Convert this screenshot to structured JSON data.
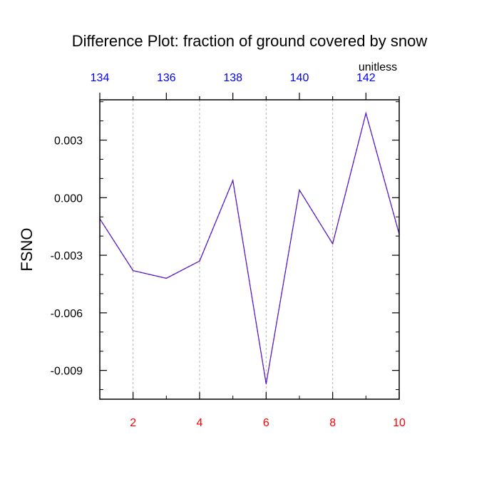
{
  "chart_data": {
    "type": "line",
    "title": "Difference Plot: fraction of ground covered by snow",
    "ylabel": "FSNO",
    "units_label": "unitless",
    "x": [
      1,
      2,
      3,
      4,
      5,
      6,
      7,
      8,
      9,
      10
    ],
    "series": [
      {
        "values": [
          -0.0011,
          -0.0038,
          -0.0042,
          -0.0033,
          0.0009,
          -0.0097,
          0.0004,
          -0.0024,
          0.0044,
          -0.0019
        ]
      }
    ],
    "xlim": [
      1,
      10
    ],
    "ylim": [
      -0.0105,
      0.0051
    ],
    "x_ticks": [
      2,
      4,
      6,
      8,
      10
    ],
    "x_tick_labels": [
      "2",
      "4",
      "6",
      "8",
      "10"
    ],
    "x_minor_ticks": [
      1,
      3,
      5,
      7,
      9
    ],
    "top_ticks": [
      1,
      2,
      3,
      4,
      5,
      6,
      7,
      8,
      9,
      10
    ],
    "top_major_ticks": [
      1,
      3,
      5,
      7,
      9
    ],
    "top_tick_labels": [
      "134",
      "136",
      "138",
      "140",
      "142"
    ],
    "y_ticks": [
      0.003,
      0.0,
      -0.003,
      -0.006,
      -0.009
    ],
    "y_tick_labels": [
      "0.003",
      "0.000",
      "-0.003",
      "-0.006",
      "-0.009"
    ],
    "y_minor_step": 0.001,
    "vertical_grid": true,
    "colors": {
      "line": "#7f1f9f",
      "line_dash": "#1f1fff",
      "bottom_ticks": "#ff0000",
      "top_ticks": "#0000ff",
      "axis": "#000000",
      "grid": "#b0b0b0"
    }
  }
}
